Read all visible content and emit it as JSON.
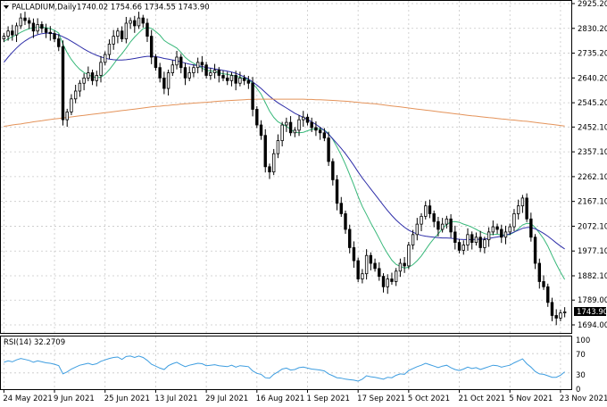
{
  "window": {
    "symbol": "PALLADIUM,Daily",
    "ohlc": "1740.02 1754.66 1734.55 1743.90",
    "current_price_label": "1743.90"
  },
  "rsi_panel": {
    "title": "RSI(14) 32.2709",
    "levels": [
      "100",
      "70",
      "30",
      "0"
    ]
  },
  "colors": {
    "background": "#ffffff",
    "candle": "#000000",
    "ma_fast": "#38b87a",
    "ma_mid": "#2d2da8",
    "ma_slow": "#e4935a",
    "rsi_line": "#3d9de0",
    "grid": "#c8c8c8"
  },
  "chart_data": {
    "type": "candlestick",
    "title": "PALLADIUM,Daily",
    "y_ticks": [
      "2925.20",
      "2830.20",
      "2735.20",
      "2640.20",
      "2545.20",
      "2452.10",
      "2357.10",
      "2262.10",
      "2167.10",
      "2072.10",
      "1977.10",
      "1882.10",
      "1789.00",
      "1694.00"
    ],
    "ylim": [
      1694.0,
      2925.2
    ],
    "x_ticks": [
      {
        "label": "24 May 2021",
        "index": 0
      },
      {
        "label": "9 Jun 2021",
        "index": 12
      },
      {
        "label": "25 Jun 2021",
        "index": 24
      },
      {
        "label": "13 Jul 2021",
        "index": 36
      },
      {
        "label": "29 Jul 2021",
        "index": 48
      },
      {
        "label": "16 Aug 2021",
        "index": 60
      },
      {
        "label": "1 Sep 2021",
        "index": 72
      },
      {
        "label": "17 Sep 2021",
        "index": 84
      },
      {
        "label": "5 Oct 2021",
        "index": 96
      },
      {
        "label": "21 Oct 2021",
        "index": 108
      },
      {
        "label": "5 Nov 2021",
        "index": 120
      },
      {
        "label": "23 Nov 2021",
        "index": 132
      }
    ],
    "grid": true,
    "close": [
      2800,
      2820,
      2805,
      2840,
      2870,
      2860,
      2850,
      2820,
      2845,
      2830,
      2815,
      2810,
      2790,
      2760,
      2480,
      2510,
      2560,
      2590,
      2620,
      2640,
      2660,
      2630,
      2650,
      2700,
      2730,
      2770,
      2800,
      2820,
      2790,
      2850,
      2860,
      2840,
      2870,
      2850,
      2800,
      2720,
      2680,
      2640,
      2600,
      2660,
      2690,
      2720,
      2680,
      2640,
      2660,
      2680,
      2700,
      2690,
      2650,
      2660,
      2670,
      2650,
      2640,
      2630,
      2650,
      2620,
      2640,
      2630,
      2620,
      2520,
      2460,
      2420,
      2300,
      2280,
      2350,
      2400,
      2460,
      2470,
      2430,
      2440,
      2480,
      2490,
      2470,
      2450,
      2440,
      2430,
      2410,
      2320,
      2250,
      2160,
      2120,
      2060,
      1990,
      1940,
      1870,
      1890,
      1960,
      1930,
      1910,
      1880,
      1840,
      1870,
      1860,
      1900,
      1930,
      1920,
      2000,
      2040,
      2080,
      2110,
      2150,
      2120,
      2090,
      2060,
      2080,
      2100,
      2050,
      2010,
      1980,
      2000,
      2040,
      2010,
      2030,
      1990,
      2020,
      2050,
      2070,
      2060,
      2030,
      2050,
      2070,
      2120,
      2150,
      2180,
      2100,
      2030,
      1930,
      1860,
      1840,
      1780,
      1730,
      1720,
      1740,
      1743.9
    ],
    "series": [
      {
        "name": "MA fast",
        "values": [
          2780,
          2790,
          2798,
          2806,
          2815,
          2823,
          2829,
          2833,
          2834,
          2835,
          2833,
          2829,
          2823,
          2812,
          2770,
          2737,
          2711,
          2690,
          2673,
          2661,
          2653,
          2645,
          2641,
          2643,
          2654,
          2672,
          2693,
          2715,
          2733,
          2755,
          2778,
          2797,
          2813,
          2829,
          2834,
          2830,
          2818,
          2804,
          2784,
          2773,
          2764,
          2755,
          2738,
          2719,
          2706,
          2696,
          2687,
          2678,
          2669,
          2667,
          2665,
          2660,
          2656,
          2654,
          2651,
          2647,
          2643,
          2638,
          2633,
          2619,
          2600,
          2578,
          2546,
          2513,
          2489,
          2472,
          2463,
          2455,
          2443,
          2432,
          2430,
          2432,
          2438,
          2443,
          2446,
          2445,
          2441,
          2427,
          2405,
          2376,
          2344,
          2309,
          2270,
          2230,
          2186,
          2148,
          2117,
          2085,
          2055,
          2025,
          1994,
          1967,
          1942,
          1926,
          1918,
          1912,
          1915,
          1925,
          1940,
          1958,
          1982,
          2005,
          2025,
          2043,
          2062,
          2079,
          2088,
          2090,
          2087,
          2080,
          2075,
          2068,
          2060,
          2051,
          2044,
          2040,
          2040,
          2041,
          2039,
          2038,
          2040,
          2049,
          2062,
          2077,
          2083,
          2082,
          2067,
          2046,
          2024,
          1996,
          1960,
          1927,
          1896,
          1868
        ]
      },
      {
        "name": "MA mid",
        "values": [
          2700,
          2720,
          2738,
          2755,
          2770,
          2782,
          2792,
          2800,
          2806,
          2810,
          2812,
          2812,
          2810,
          2805,
          2798,
          2790,
          2781,
          2771,
          2761,
          2751,
          2742,
          2734,
          2727,
          2721,
          2716,
          2712,
          2710,
          2709,
          2709,
          2710,
          2712,
          2715,
          2718,
          2721,
          2723,
          2723,
          2722,
          2719,
          2715,
          2712,
          2709,
          2706,
          2702,
          2697,
          2693,
          2690,
          2687,
          2684,
          2680,
          2678,
          2675,
          2672,
          2669,
          2666,
          2663,
          2658,
          2652,
          2644,
          2636,
          2625,
          2613,
          2600,
          2585,
          2570,
          2557,
          2545,
          2535,
          2525,
          2515,
          2505,
          2497,
          2489,
          2481,
          2472,
          2462,
          2451,
          2439,
          2424,
          2407,
          2389,
          2370,
          2350,
          2328,
          2305,
          2280,
          2257,
          2236,
          2215,
          2194,
          2173,
          2152,
          2132,
          2113,
          2096,
          2081,
          2068,
          2057,
          2049,
          2042,
          2037,
          2034,
          2032,
          2030,
          2028,
          2027,
          2027,
          2026,
          2024,
          2022,
          2021,
          2021,
          2021,
          2022,
          2022,
          2023,
          2025,
          2028,
          2031,
          2034,
          2038,
          2043,
          2050,
          2057,
          2064,
          2067,
          2067,
          2062,
          2054,
          2045,
          2034,
          2021,
          2008,
          1996,
          1985
        ]
      },
      {
        "name": "MA slow",
        "values": [
          2455,
          2457,
          2460,
          2462,
          2464,
          2467,
          2469,
          2472,
          2474,
          2476,
          2479,
          2481,
          2483,
          2485,
          2487,
          2489,
          2491,
          2493,
          2495,
          2497,
          2499,
          2501,
          2503,
          2505,
          2507,
          2509,
          2511,
          2513,
          2515,
          2517,
          2519,
          2521,
          2523,
          2525,
          2527,
          2529,
          2531,
          2532,
          2534,
          2535,
          2537,
          2538,
          2540,
          2541,
          2542,
          2544,
          2545,
          2546,
          2547,
          2548,
          2550,
          2551,
          2552,
          2553,
          2554,
          2555,
          2556,
          2557,
          2558,
          2558,
          2559,
          2559,
          2559,
          2559,
          2559,
          2559,
          2559,
          2559,
          2559,
          2559,
          2559,
          2559,
          2558,
          2558,
          2557,
          2557,
          2556,
          2555,
          2554,
          2553,
          2552,
          2551,
          2550,
          2548,
          2547,
          2545,
          2544,
          2542,
          2541,
          2539,
          2537,
          2535,
          2533,
          2531,
          2529,
          2527,
          2525,
          2523,
          2521,
          2519,
          2517,
          2515,
          2513,
          2511,
          2509,
          2507,
          2505,
          2503,
          2501,
          2499,
          2497,
          2495,
          2494,
          2492,
          2490,
          2488,
          2487,
          2485,
          2483,
          2482,
          2480,
          2479,
          2477,
          2475,
          2474,
          2472,
          2470,
          2468,
          2466,
          2464,
          2462,
          2460,
          2458,
          2456
        ]
      }
    ],
    "rsi": {
      "name": "RSI(14)",
      "ylim": [
        0,
        100
      ],
      "values": [
        52,
        55,
        53,
        57,
        60,
        58,
        56,
        52,
        55,
        53,
        51,
        50,
        48,
        45,
        28,
        32,
        38,
        42,
        46,
        48,
        50,
        47,
        49,
        54,
        57,
        60,
        62,
        63,
        58,
        64,
        65,
        62,
        65,
        62,
        56,
        48,
        44,
        40,
        37,
        45,
        49,
        52,
        47,
        43,
        46,
        48,
        50,
        49,
        45,
        46,
        47,
        45,
        44,
        43,
        46,
        42,
        45,
        44,
        43,
        34,
        29,
        27,
        20,
        19,
        27,
        32,
        38,
        40,
        36,
        37,
        41,
        42,
        40,
        38,
        37,
        36,
        34,
        28,
        24,
        20,
        19,
        17,
        16,
        15,
        13,
        17,
        24,
        22,
        21,
        19,
        17,
        21,
        20,
        25,
        28,
        27,
        35,
        39,
        43,
        46,
        50,
        47,
        44,
        41,
        44,
        46,
        41,
        37,
        35,
        38,
        42,
        39,
        41,
        37,
        40,
        43,
        46,
        45,
        42,
        44,
        46,
        51,
        55,
        59,
        49,
        42,
        33,
        28,
        27,
        24,
        21,
        21,
        25,
        32.27
      ]
    }
  }
}
